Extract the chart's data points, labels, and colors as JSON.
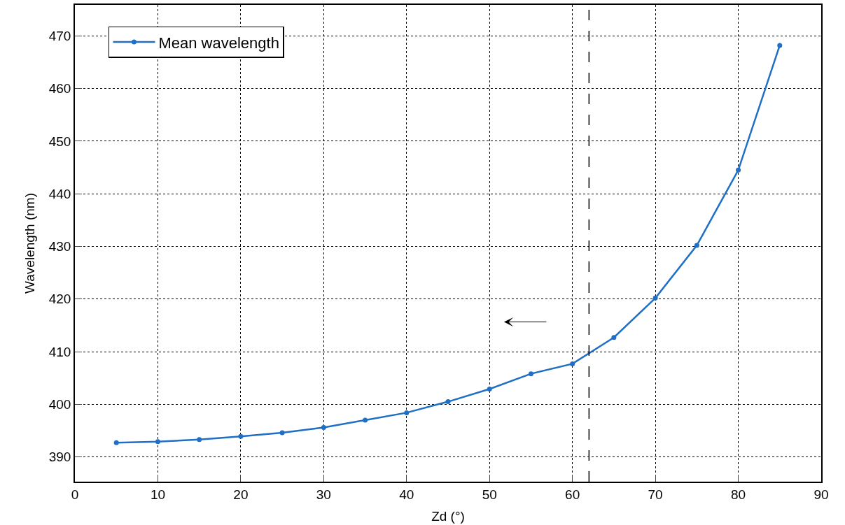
{
  "chart_data": {
    "type": "line",
    "xlabel": "Zd (°)",
    "ylabel": "Wavelength (nm)",
    "x": [
      5,
      10,
      15,
      20,
      25,
      30,
      35,
      40,
      45,
      50,
      55,
      60,
      65,
      70,
      75,
      80,
      85
    ],
    "series": [
      {
        "name": "Mean wavelength",
        "color": "#1f6fc5",
        "values": [
          392.7,
          392.9,
          393.3,
          393.9,
          394.6,
          395.6,
          397.0,
          398.4,
          400.5,
          402.9,
          405.8,
          407.7,
          412.7,
          420.2,
          430.2,
          444.5,
          468.2
        ]
      }
    ],
    "xlim": [
      0,
      90
    ],
    "xticks": [
      0,
      10,
      20,
      30,
      40,
      50,
      60,
      70,
      80,
      90
    ],
    "ylim": [
      385.3,
      475.9
    ],
    "yticks": [
      390,
      400,
      410,
      420,
      430,
      440,
      450,
      460,
      470
    ],
    "ref_lines": [
      {
        "axis": "x",
        "value": 62,
        "color": "#000000",
        "line_style": "dashed"
      }
    ],
    "grid": true,
    "legend": "top left",
    "marker": "circle",
    "line_style": "solid"
  }
}
